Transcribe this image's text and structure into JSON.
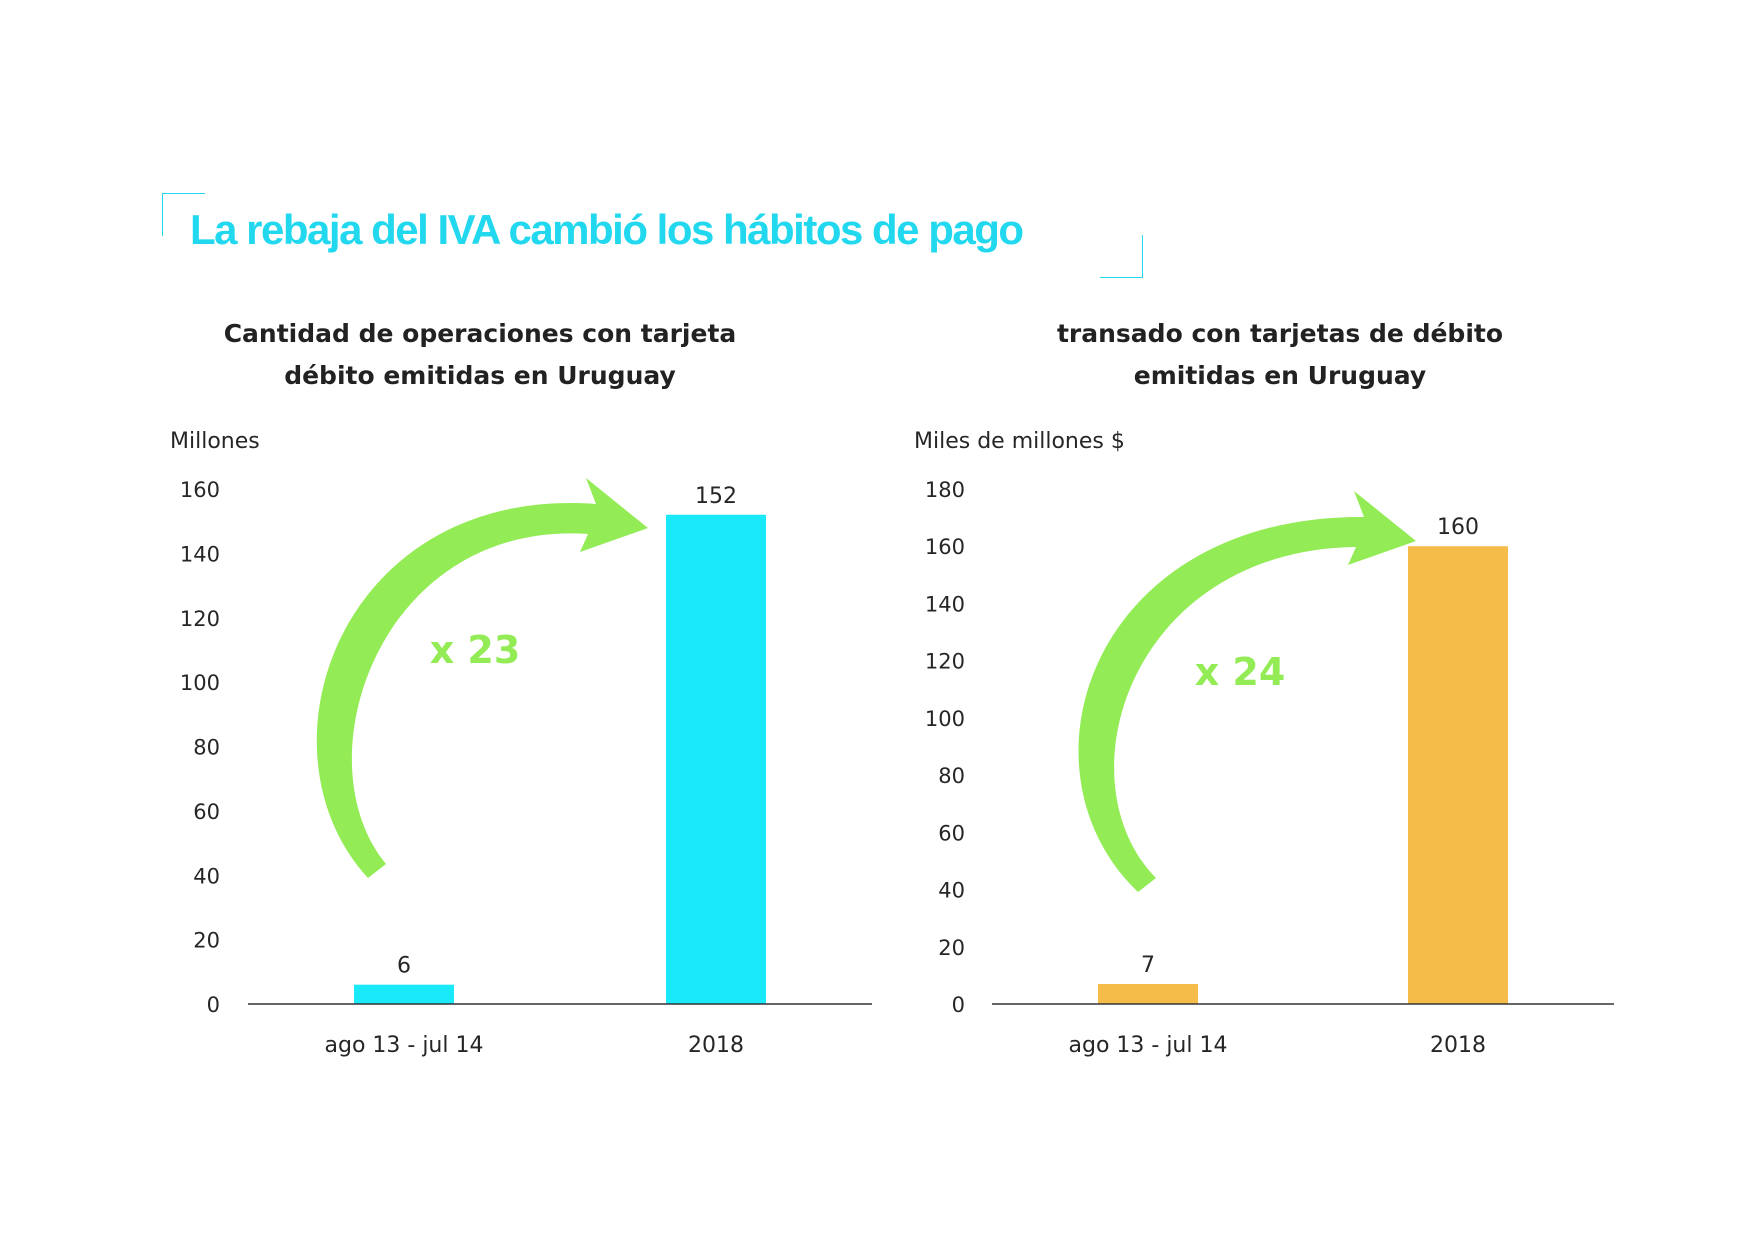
{
  "headline": "La rebaja del IVA cambió los hábitos de pago",
  "colors": {
    "headline": "#22d8ee",
    "corner": "#22d8ee",
    "left_bars": "#1ae8fb",
    "right_bars": "#f6bc4a",
    "arrow": "#93ec55",
    "axis": "#333333"
  },
  "chart_data": [
    {
      "type": "bar",
      "title_lines": [
        "Cantidad de operaciones con tarjeta",
        "débito emitidas en Uruguay"
      ],
      "ylabel": "Millones",
      "categories": [
        "ago 13 - jul 14",
        "2018"
      ],
      "values": [
        6,
        152
      ],
      "data_labels": [
        "6",
        "152"
      ],
      "ylim": [
        0,
        160
      ],
      "yticks": [
        0,
        20,
        40,
        60,
        80,
        100,
        120,
        140,
        160
      ],
      "grid": false,
      "annotation": "x 23",
      "annotation_icon": "curved-arrow-icon"
    },
    {
      "type": "bar",
      "title_lines": [
        "transado con tarjetas de débito",
        "emitidas en Uruguay"
      ],
      "ylabel": "Miles de millones $",
      "categories": [
        "ago 13 - jul 14",
        "2018"
      ],
      "values": [
        7,
        160
      ],
      "data_labels": [
        "7",
        "160"
      ],
      "ylim": [
        0,
        180
      ],
      "yticks": [
        0,
        20,
        40,
        60,
        80,
        100,
        120,
        140,
        160,
        180
      ],
      "grid": false,
      "annotation": "x 24",
      "annotation_icon": "curved-arrow-icon"
    }
  ]
}
